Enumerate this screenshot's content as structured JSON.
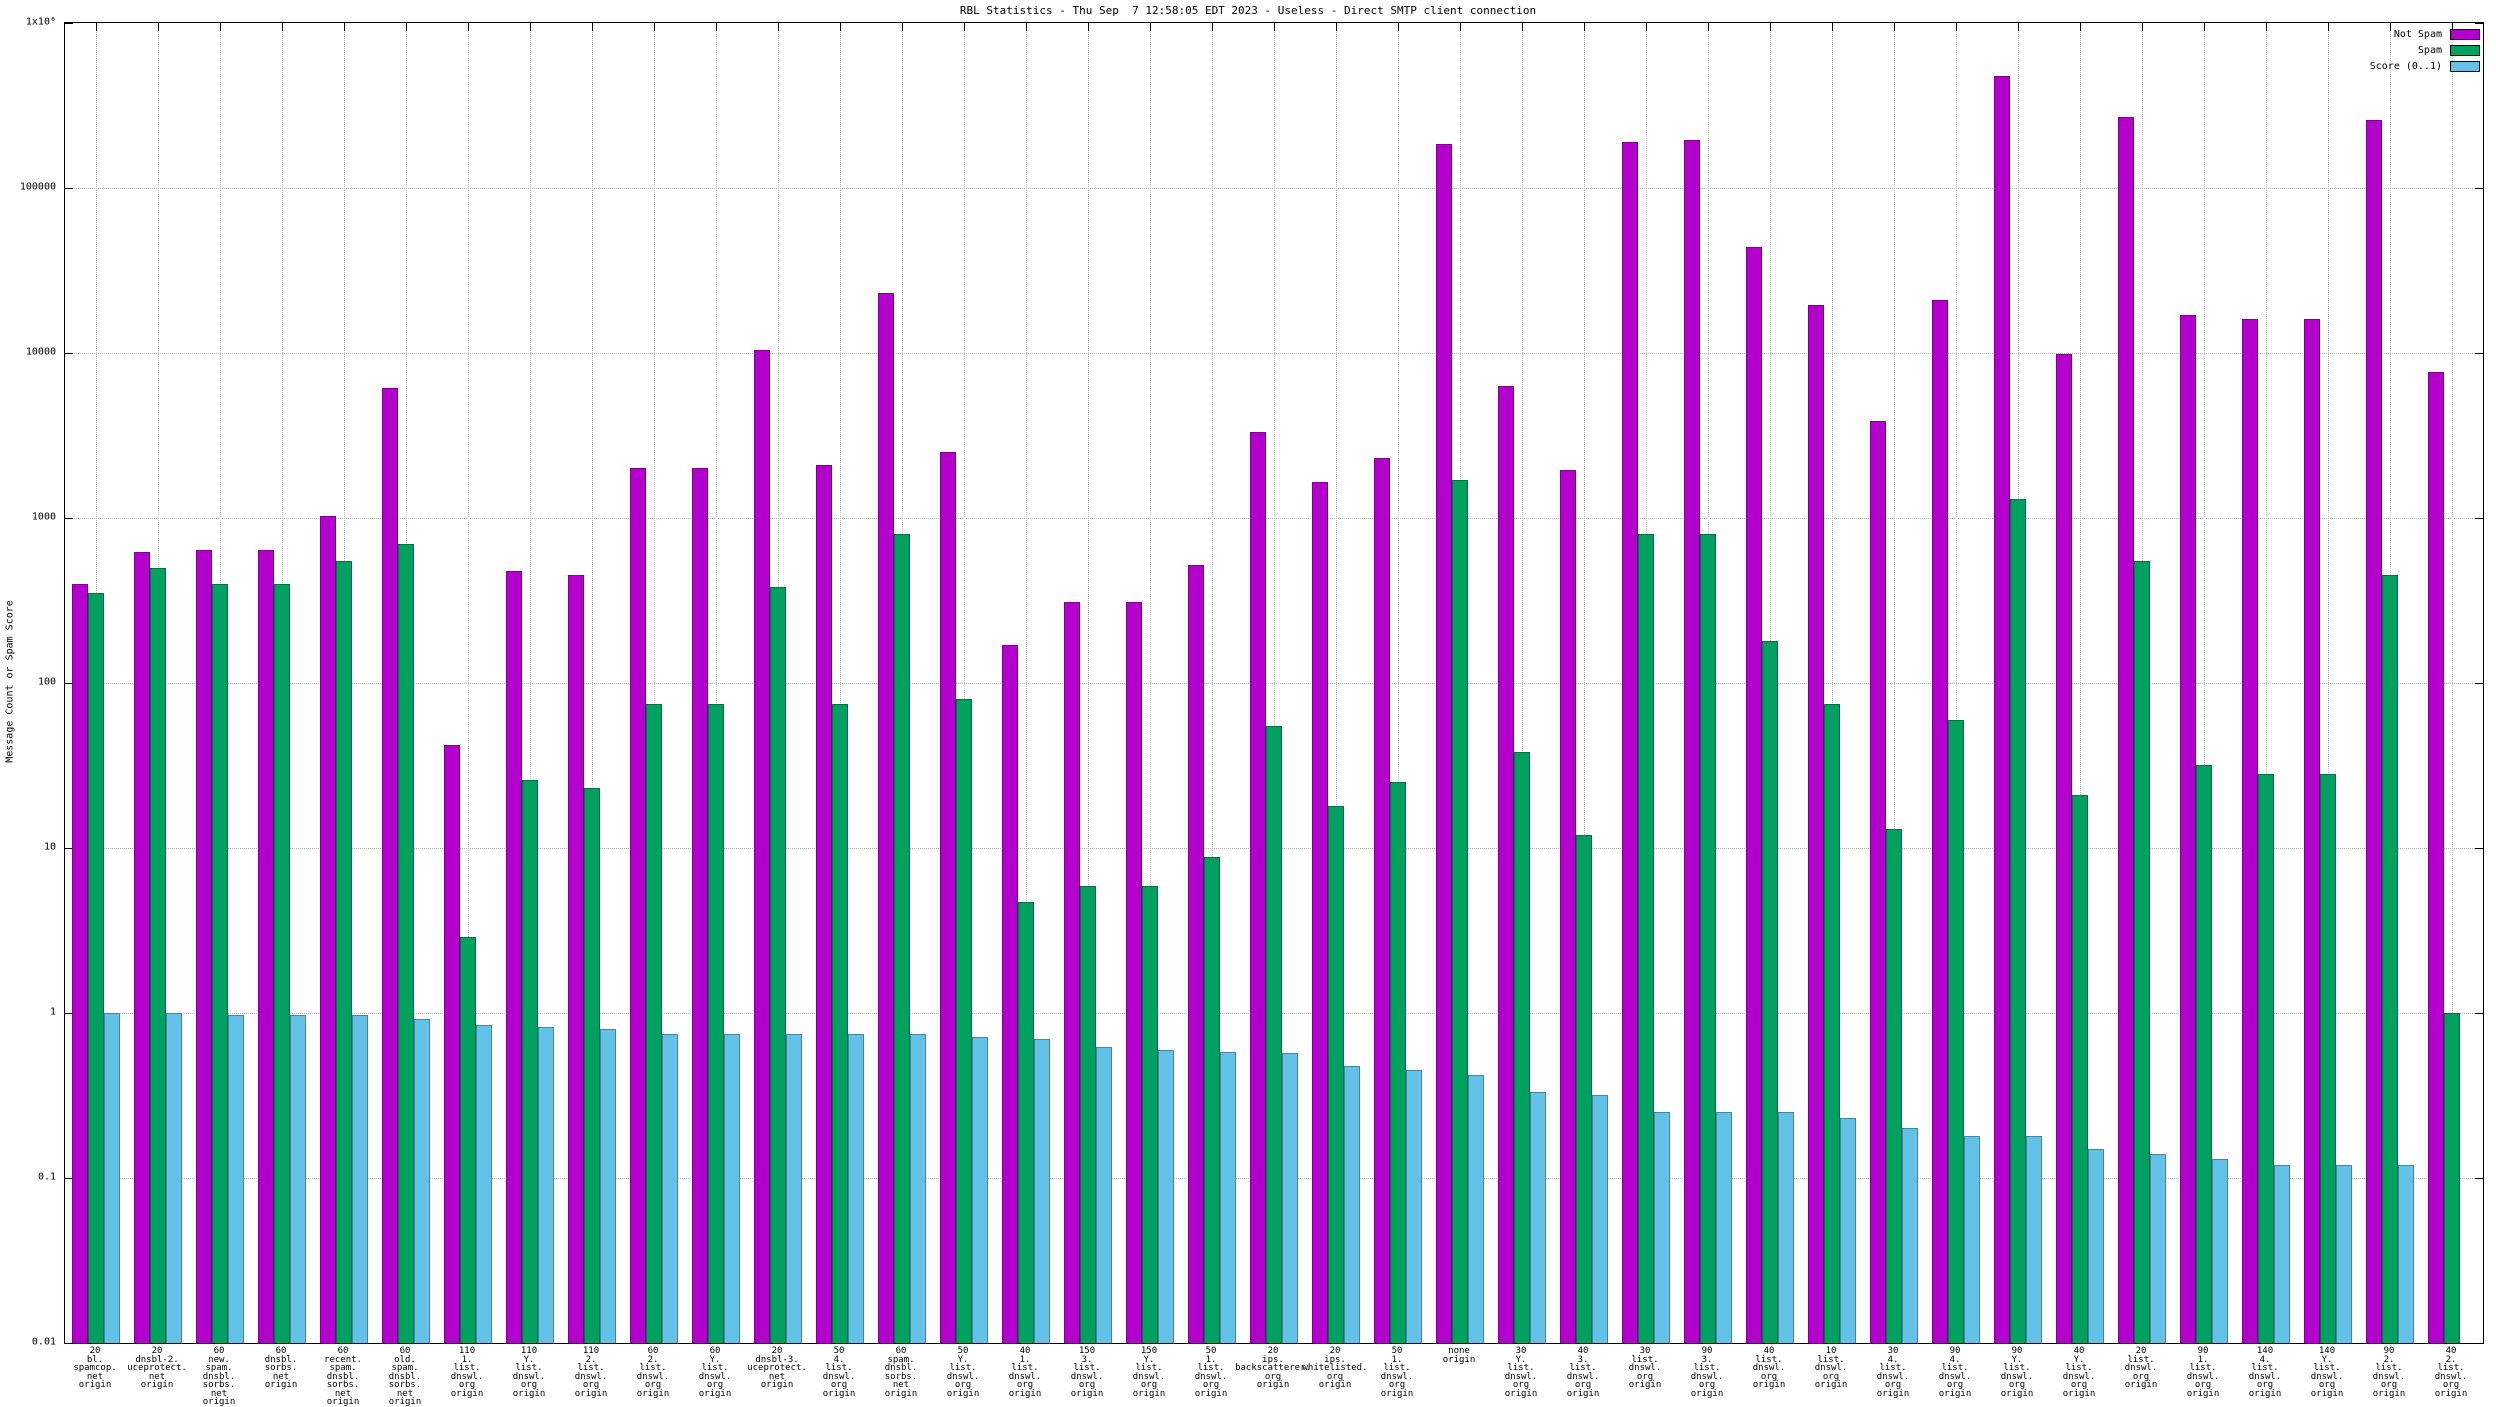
{
  "title": "RBL Statistics - Thu Sep  7 12:58:05 EDT 2023 - Useless - Direct SMTP client connection",
  "ylabel": "Message Count or Spam Score",
  "legend": [
    {
      "label": "Not Spam",
      "color": "#b400cc"
    },
    {
      "label": "Spam",
      "color": "#00a060"
    },
    {
      "label": "Score (0..1)",
      "color": "#63c2e8"
    }
  ],
  "chart_data": {
    "type": "bar",
    "log_scale_y": true,
    "ylim": [
      0.01,
      1000000
    ],
    "grid": true,
    "legend_position": "top-right",
    "y_ticks": [
      {
        "value": 0.01,
        "label": "0.01"
      },
      {
        "value": 0.1,
        "label": "0.1"
      },
      {
        "value": 1,
        "label": "1"
      },
      {
        "value": 10,
        "label": "10"
      },
      {
        "value": 100,
        "label": "100"
      },
      {
        "value": 1000,
        "label": "1000"
      },
      {
        "value": 10000,
        "label": "10000"
      },
      {
        "value": 100000,
        "label": "100000"
      },
      {
        "value": 1000000,
        "label": "1x10⁶"
      }
    ],
    "categories": [
      [
        "20",
        "bl.",
        "spamcop.",
        "net",
        "origin"
      ],
      [
        "20",
        "dnsbl-2.",
        "uceprotect.",
        "net",
        "origin"
      ],
      [
        "60",
        "new.",
        "spam.",
        "dnsbl.",
        "sorbs.",
        "net",
        "origin"
      ],
      [
        "60",
        "dnsbl.",
        "sorbs.",
        "net",
        "origin"
      ],
      [
        "60",
        "recent.",
        "spam.",
        "dnsbl.",
        "sorbs.",
        "net",
        "origin"
      ],
      [
        "60",
        "old.",
        "spam.",
        "dnsbl.",
        "sorbs.",
        "net",
        "origin"
      ],
      [
        "110",
        "1.",
        "list.",
        "dnswl.",
        "org",
        "origin"
      ],
      [
        "110",
        "Y.",
        "list.",
        "dnswl.",
        "org",
        "origin"
      ],
      [
        "110",
        "2.",
        "list.",
        "dnswl.",
        "org",
        "origin"
      ],
      [
        "60",
        "2.",
        "list.",
        "dnswl.",
        "org",
        "origin"
      ],
      [
        "60",
        "Y.",
        "list.",
        "dnswl.",
        "org",
        "origin"
      ],
      [
        "20",
        "dnsbl-3.",
        "uceprotect.",
        "net",
        "origin"
      ],
      [
        "50",
        "4.",
        "list.",
        "dnswl.",
        "org",
        "origin"
      ],
      [
        "60",
        "spam.",
        "dnsbl.",
        "sorbs.",
        "net",
        "origin"
      ],
      [
        "50",
        "Y.",
        "list.",
        "dnswl.",
        "org",
        "origin"
      ],
      [
        "40",
        "1.",
        "list.",
        "dnswl.",
        "org",
        "origin"
      ],
      [
        "150",
        "3.",
        "list.",
        "dnswl.",
        "org",
        "origin"
      ],
      [
        "150",
        "Y.",
        "list.",
        "dnswl.",
        "org",
        "origin"
      ],
      [
        "50",
        "1.",
        "list.",
        "dnswl.",
        "org",
        "origin"
      ],
      [
        "20",
        "ips.",
        "backscatterer.",
        "org",
        "origin"
      ],
      [
        "20",
        "ips.",
        "whitelisted.",
        "org",
        "origin"
      ],
      [
        "50",
        "1.",
        "list.",
        "dnswl.",
        "org",
        "origin"
      ],
      [
        "none",
        "origin"
      ],
      [
        "30",
        "Y.",
        "list.",
        "dnswl.",
        "org",
        "origin"
      ],
      [
        "40",
        "3.",
        "list.",
        "dnswl.",
        "org",
        "origin"
      ],
      [
        "30",
        "list.",
        "dnswl.",
        "org",
        "origin"
      ],
      [
        "90",
        "3.",
        "list.",
        "dnswl.",
        "org",
        "origin"
      ],
      [
        "40",
        "list.",
        "dnswl.",
        "org",
        "origin"
      ],
      [
        "10",
        "list.",
        "dnswl.",
        "org",
        "origin"
      ],
      [
        "30",
        "4.",
        "list.",
        "dnswl.",
        "org",
        "origin"
      ],
      [
        "90",
        "4.",
        "list.",
        "dnswl.",
        "org",
        "origin"
      ],
      [
        "90",
        "Y.",
        "list.",
        "dnswl.",
        "org",
        "origin"
      ],
      [
        "40",
        "Y.",
        "list.",
        "dnswl.",
        "org",
        "origin"
      ],
      [
        "20",
        "list.",
        "dnswl.",
        "org",
        "origin"
      ],
      [
        "90",
        "1.",
        "list.",
        "dnswl.",
        "org",
        "origin"
      ],
      [
        "140",
        "4.",
        "list.",
        "dnswl.",
        "org",
        "origin"
      ],
      [
        "140",
        "Y.",
        "list.",
        "dnswl.",
        "org",
        "origin"
      ],
      [
        "90",
        "2.",
        "list.",
        "dnswl.",
        "org",
        "origin"
      ],
      [
        "40",
        "2.",
        "list.",
        "dnswl.",
        "org",
        "origin"
      ]
    ],
    "series": [
      {
        "name": "Not Spam",
        "color": "#b400cc",
        "values": [
          400,
          620,
          640,
          640,
          1030,
          6100,
          42,
          480,
          450,
          2000,
          2000,
          10500,
          2100,
          23000,
          2500,
          170,
          310,
          310,
          520,
          3300,
          1650,
          2300,
          185000,
          6300,
          1950,
          190000,
          195000,
          44000,
          19500,
          3900,
          21000,
          480000,
          9800,
          270000,
          17000,
          16000,
          16000,
          260000,
          7700
        ]
      },
      {
        "name": "Spam",
        "color": "#00a060",
        "values": [
          350,
          500,
          400,
          400,
          550,
          700,
          2.9,
          26,
          23,
          75,
          75,
          380,
          75,
          800,
          80,
          4.7,
          5.9,
          5.9,
          8.8,
          55,
          18,
          25,
          1700,
          38,
          12,
          800,
          800,
          180,
          75,
          13,
          60,
          1300,
          21,
          550,
          32,
          28,
          28,
          450,
          1.0
        ]
      },
      {
        "name": "Score (0..1)",
        "color": "#63c2e8",
        "values": [
          1.0,
          1.0,
          0.97,
          0.97,
          0.97,
          0.92,
          0.85,
          0.82,
          0.8,
          0.75,
          0.75,
          0.75,
          0.75,
          0.75,
          0.72,
          0.7,
          0.62,
          0.6,
          0.58,
          0.57,
          0.48,
          0.45,
          0.42,
          0.33,
          0.32,
          0.25,
          0.25,
          0.25,
          0.23,
          0.2,
          0.18,
          0.18,
          0.15,
          0.14,
          0.13,
          0.12,
          0.12,
          0.12,
          null
        ]
      }
    ]
  }
}
